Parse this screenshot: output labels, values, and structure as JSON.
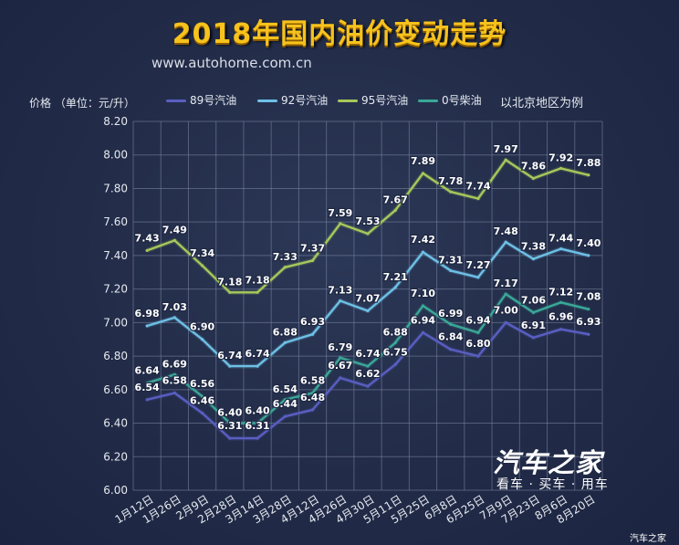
{
  "header": {
    "title": "2018年国内油价变动走势",
    "url": "www.autohome.com.cn"
  },
  "colors": {
    "title": "#f6c21c",
    "grid": "#7d88a6",
    "series": [
      "#5a5ec2",
      "#6ec0e6",
      "#a6c85a",
      "#3aa898"
    ]
  },
  "logo": {
    "main": "汽车之家",
    "sub": "看车 · 买车 · 用车",
    "watermark": "汽车之家"
  },
  "chart_data": {
    "type": "line",
    "title": "2018年国内油价变动走势",
    "ylabel": "价格 （单位：元/升）",
    "xlabel": "",
    "note": "以北京地区为例",
    "ylim": [
      6.0,
      8.2
    ],
    "yticks": [
      "6.00",
      "6.20",
      "6.40",
      "6.60",
      "6.80",
      "7.00",
      "7.20",
      "7.40",
      "7.60",
      "7.80",
      "8.00",
      "8.20"
    ],
    "grid": true,
    "legend_position": "top",
    "categories": [
      "1月12日",
      "1月26日",
      "2月9日",
      "2月28日",
      "3月14日",
      "3月28日",
      "4月12日",
      "4月26日",
      "4月30日",
      "5月11日",
      "5月25日",
      "6月8日",
      "6月25日",
      "7月9日",
      "7月23日",
      "8月6日",
      "8月20日"
    ],
    "series": [
      {
        "name": "89号汽油",
        "values": [
          6.54,
          6.58,
          6.46,
          6.31,
          6.31,
          6.44,
          6.48,
          6.67,
          6.62,
          6.75,
          6.94,
          6.84,
          6.8,
          7.0,
          6.91,
          6.96,
          6.93
        ]
      },
      {
        "name": "92号汽油",
        "values": [
          6.98,
          7.03,
          6.9,
          6.74,
          6.74,
          6.88,
          6.93,
          7.13,
          7.07,
          7.21,
          7.42,
          7.31,
          7.27,
          7.48,
          7.38,
          7.44,
          7.4
        ]
      },
      {
        "name": "95号汽油",
        "values": [
          7.43,
          7.49,
          7.34,
          7.18,
          7.18,
          7.33,
          7.37,
          7.59,
          7.53,
          7.67,
          7.89,
          7.78,
          7.74,
          7.97,
          7.86,
          7.92,
          7.88
        ]
      },
      {
        "name": "0号柴油",
        "values": [
          6.64,
          6.69,
          6.56,
          6.4,
          6.4,
          6.54,
          6.58,
          6.79,
          6.74,
          6.88,
          7.1,
          6.99,
          6.94,
          7.17,
          7.06,
          7.12,
          7.08
        ]
      }
    ],
    "labels": [
      [
        "6.54",
        "6.58",
        "6.46",
        "6.31",
        "6.31",
        "6.44",
        "6.48",
        "6.67",
        "6.62",
        "6.75",
        "6.94",
        "6.84",
        "6.80",
        "7.00",
        "6.91",
        "6.96",
        "6.93"
      ],
      [
        "6.98",
        "7.03",
        "6.90",
        "6.74",
        "6.74",
        "6.88",
        "6.93",
        "7.13",
        "7.07",
        "7.21",
        "7.42",
        "7.31",
        "7.27",
        "7.48",
        "7.38",
        "7.44",
        "7.40"
      ],
      [
        "7.43",
        "7.49",
        "7.34",
        "7.18",
        "7.18",
        "7.33",
        "7.37",
        "7.59",
        "7.53",
        "7.67",
        "7.89",
        "7.78",
        "7.74",
        "7.97",
        "7.86",
        "7.92",
        "7.88"
      ],
      [
        "6.64",
        "6.69",
        "6.56",
        "6.40",
        "6.40",
        "6.54",
        "6.58",
        "6.79",
        "6.74",
        "6.88",
        "7.10",
        "6.99",
        "6.94",
        "7.17",
        "7.06",
        "7.12",
        "7.08"
      ]
    ]
  }
}
